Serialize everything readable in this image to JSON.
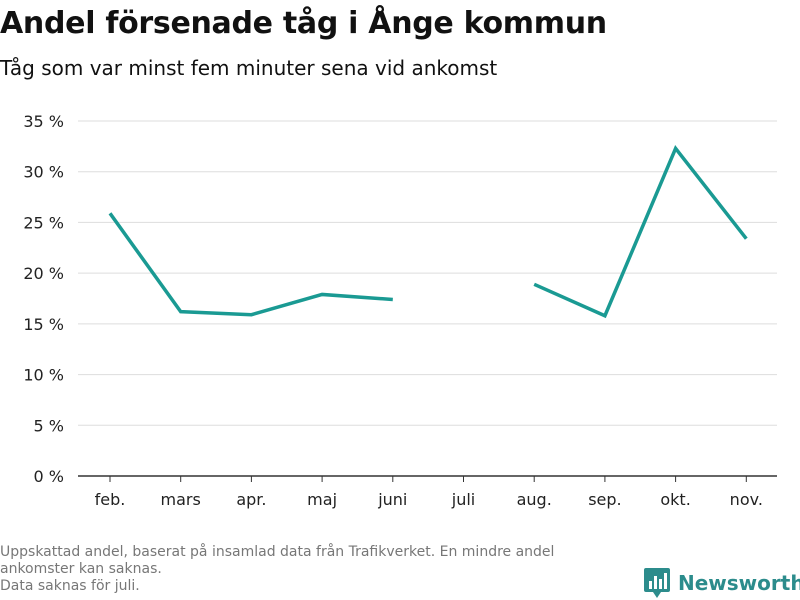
{
  "title": "Andel försenade tåg i Ånge kommun",
  "subtitle": "Tåg som var minst fem minuter sena vid ankomst",
  "footer": {
    "line1": "Uppskattad andel, baserat på insamlad data från Trafikverket. En mindre andel",
    "line2": "ankomster kan saknas.",
    "line3": "Data saknas för juli."
  },
  "brand": {
    "name": "Newsworthy",
    "icon": "bar-chart-logo-icon"
  },
  "colors": {
    "line": "#1a9a93",
    "grid": "#dddddd",
    "axis": "#333333",
    "brand": "#2c8c8c"
  },
  "chart_data": {
    "type": "line",
    "categories": [
      "feb.",
      "mars",
      "apr.",
      "maj",
      "juni",
      "juli",
      "aug.",
      "sep.",
      "okt.",
      "nov."
    ],
    "series": [
      {
        "values": [
          25.9,
          16.2,
          15.9,
          17.9,
          17.4,
          null,
          18.9,
          15.8,
          32.3,
          23.4
        ]
      }
    ],
    "y_ticks": [
      0,
      5,
      10,
      15,
      20,
      25,
      30,
      35
    ],
    "y_tick_labels": [
      "0 %",
      "5 %",
      "10 %",
      "15 %",
      "20 %",
      "25 %",
      "30 %",
      "35 %"
    ],
    "ylim": [
      0,
      35
    ],
    "grid": true,
    "legend": "none"
  }
}
